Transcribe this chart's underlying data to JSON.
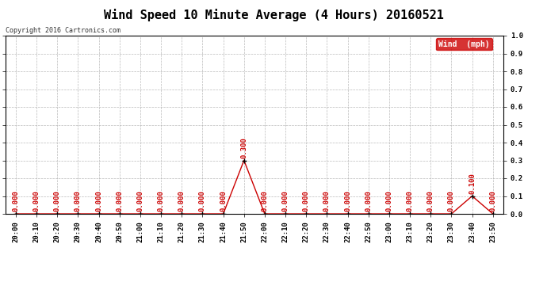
{
  "title": "Wind Speed 10 Minute Average (4 Hours) 20160521",
  "copyright": "Copyright 2016 Cartronics.com",
  "legend_label": "Wind  (mph)",
  "x_labels": [
    "20:00",
    "20:10",
    "20:20",
    "20:30",
    "20:40",
    "20:50",
    "21:00",
    "21:10",
    "21:20",
    "21:30",
    "21:40",
    "21:50",
    "22:00",
    "22:10",
    "22:20",
    "22:30",
    "22:40",
    "22:50",
    "23:00",
    "23:10",
    "23:20",
    "23:30",
    "23:40",
    "23:50"
  ],
  "y_values": [
    0.0,
    0.0,
    0.0,
    0.0,
    0.0,
    0.0,
    0.0,
    0.0,
    0.0,
    0.0,
    0.0,
    0.3,
    0.0,
    0.0,
    0.0,
    0.0,
    0.0,
    0.0,
    0.0,
    0.0,
    0.0,
    0.0,
    0.1,
    0.0
  ],
  "line_color": "#cc0000",
  "marker_color": "#000000",
  "background_color": "#ffffff",
  "grid_color": "#aaaaaa",
  "ylim": [
    0.0,
    1.0
  ],
  "yticks": [
    0.0,
    0.1,
    0.2,
    0.3,
    0.4,
    0.5,
    0.6,
    0.7,
    0.8,
    0.9,
    1.0
  ],
  "title_fontsize": 11,
  "label_fontsize": 6.5,
  "annotation_fontsize": 6.5,
  "legend_bg": "#cc0000",
  "legend_fg": "#ffffff"
}
